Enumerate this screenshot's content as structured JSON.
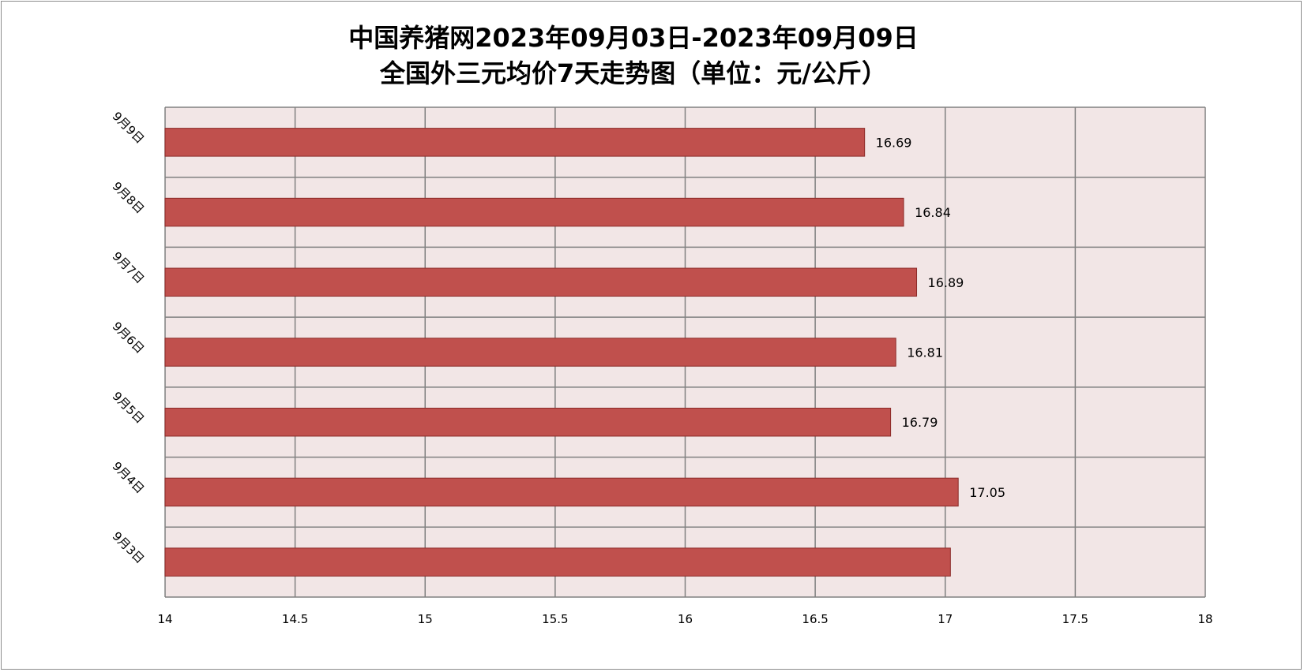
{
  "chart_data": {
    "type": "bar",
    "orientation": "horizontal",
    "title": "中国养猪网2023年09月03日-2023年09月09日",
    "subtitle": "全国外三元均价7天走势图（单位：元/公斤）",
    "categories": [
      "9月9日",
      "9月8日",
      "9月7日",
      "9月6日",
      "9月5日",
      "9月4日",
      "9月3日"
    ],
    "values": [
      16.69,
      16.84,
      16.89,
      16.81,
      16.79,
      17.05,
      17.02
    ],
    "data_labels": [
      "16.69",
      "16.84",
      "16.89",
      "16.81",
      "16.79",
      "17.05",
      ""
    ],
    "xlim": [
      14,
      18
    ],
    "x_ticks": [
      "14",
      "14.5",
      "15",
      "15.5",
      "16",
      "16.5",
      "17",
      "17.5",
      "18"
    ],
    "grid": true,
    "colors": {
      "bar_fill": "#c0504d",
      "bar_stroke": "#8b2a28",
      "plot_bg": "#f2e6e6",
      "grid": "#808080"
    }
  }
}
